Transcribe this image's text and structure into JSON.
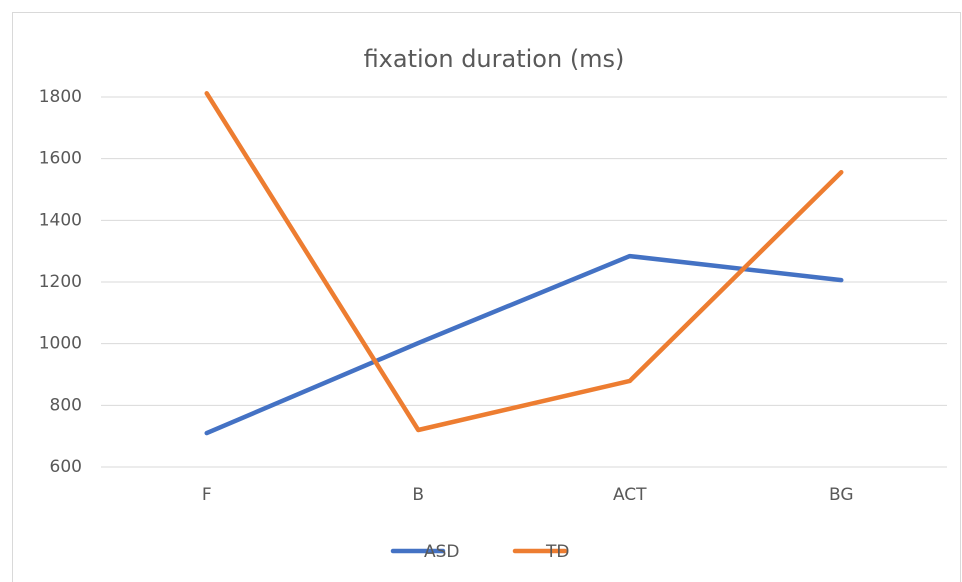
{
  "chart_data": {
    "type": "line",
    "title": "fixation duration (ms)",
    "categories": [
      "F",
      "B",
      "ACT",
      "BG"
    ],
    "series": [
      {
        "name": "ASD",
        "color": "#4472c4",
        "values": [
          710,
          1002,
          1284,
          1206
        ]
      },
      {
        "name": "TD",
        "color": "#ed7d31",
        "values": [
          1812,
          720,
          879,
          1556
        ]
      }
    ],
    "ylim": [
      600,
      1800
    ],
    "yticks": [
      600,
      800,
      1000,
      1200,
      1400,
      1600,
      1800
    ],
    "grid": true,
    "legend": "bottom"
  }
}
